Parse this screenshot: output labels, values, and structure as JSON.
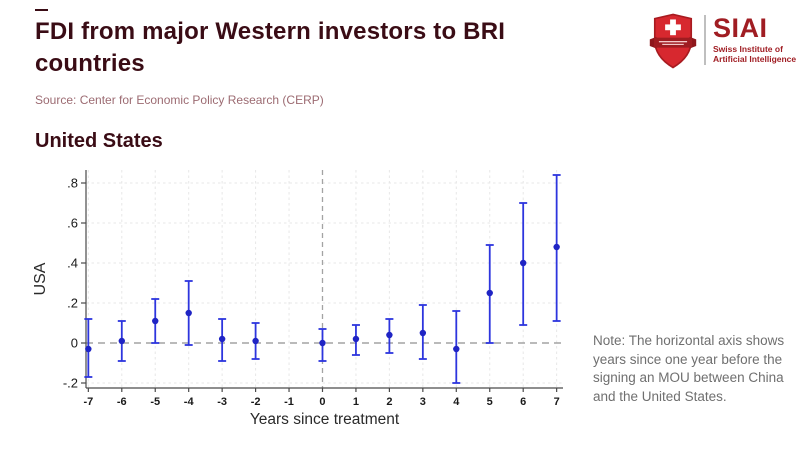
{
  "page": {
    "title": "FDI from major Western investors to BRI countries",
    "source": "Source: Center for Economic Policy Research (CERP)",
    "section_title": "United States",
    "note": "Note: The horizontal axis shows years since one year before the signing an MOU between China and the United States."
  },
  "logo": {
    "name": "SIAI",
    "subtitle_line1": "Swiss Institute of",
    "subtitle_line2": "Artificial Intelligence",
    "brand_red": "#d7282f",
    "brand_dark_red": "#9f1c21",
    "text_red": "#a01d23"
  },
  "colors": {
    "title_maroon": "#3a0c15",
    "source_text": "#9c6b72",
    "note_gray": "#6f6f6f",
    "error_bar_blue": "#2d35de",
    "point_blue": "#1f24c4",
    "ref_line_gray": "#a3a3a3",
    "grid_gray": "#e7e7e7",
    "axis_dark": "#4a4a4a",
    "tick_text": "#1a1a1a"
  },
  "chart_data": {
    "type": "scatter",
    "subtype": "event-study with 95% confidence intervals",
    "title": "United States",
    "xlabel": "Years since treatment",
    "ylabel": "USA",
    "xlim": [
      -7.07,
      7.19
    ],
    "ylim": [
      -0.225,
      0.865
    ],
    "x_ticks": [
      -7,
      -6,
      -5,
      -4,
      -3,
      -2,
      -1,
      0,
      1,
      2,
      3,
      4,
      5,
      6,
      7
    ],
    "y_ticks": [
      -0.2,
      0,
      0.2,
      0.4,
      0.6,
      0.8
    ],
    "y_tick_labels": [
      "-.2",
      "0",
      ".2",
      ".4",
      ".6",
      ".8"
    ],
    "grid": true,
    "ref_line_y": 0,
    "ref_line_x": 0,
    "legend_position": "none",
    "points": [
      {
        "x": -7,
        "y": -0.03,
        "lo": -0.17,
        "hi": 0.12
      },
      {
        "x": -6,
        "y": 0.01,
        "lo": -0.09,
        "hi": 0.11
      },
      {
        "x": -5,
        "y": 0.11,
        "lo": 0.0,
        "hi": 0.22
      },
      {
        "x": -4,
        "y": 0.15,
        "lo": -0.01,
        "hi": 0.31
      },
      {
        "x": -3,
        "y": 0.02,
        "lo": -0.09,
        "hi": 0.12
      },
      {
        "x": -2,
        "y": 0.01,
        "lo": -0.08,
        "hi": 0.1
      },
      {
        "x": 0,
        "y": 0.0,
        "lo": -0.09,
        "hi": 0.07
      },
      {
        "x": 1,
        "y": 0.02,
        "lo": -0.06,
        "hi": 0.09
      },
      {
        "x": 2,
        "y": 0.04,
        "lo": -0.05,
        "hi": 0.12
      },
      {
        "x": 3,
        "y": 0.05,
        "lo": -0.08,
        "hi": 0.19
      },
      {
        "x": 4,
        "y": -0.03,
        "lo": -0.2,
        "hi": 0.16
      },
      {
        "x": 5,
        "y": 0.25,
        "lo": 0.0,
        "hi": 0.49
      },
      {
        "x": 6,
        "y": 0.4,
        "lo": 0.09,
        "hi": 0.7
      },
      {
        "x": 7,
        "y": 0.48,
        "lo": 0.11,
        "hi": 0.84
      }
    ]
  }
}
